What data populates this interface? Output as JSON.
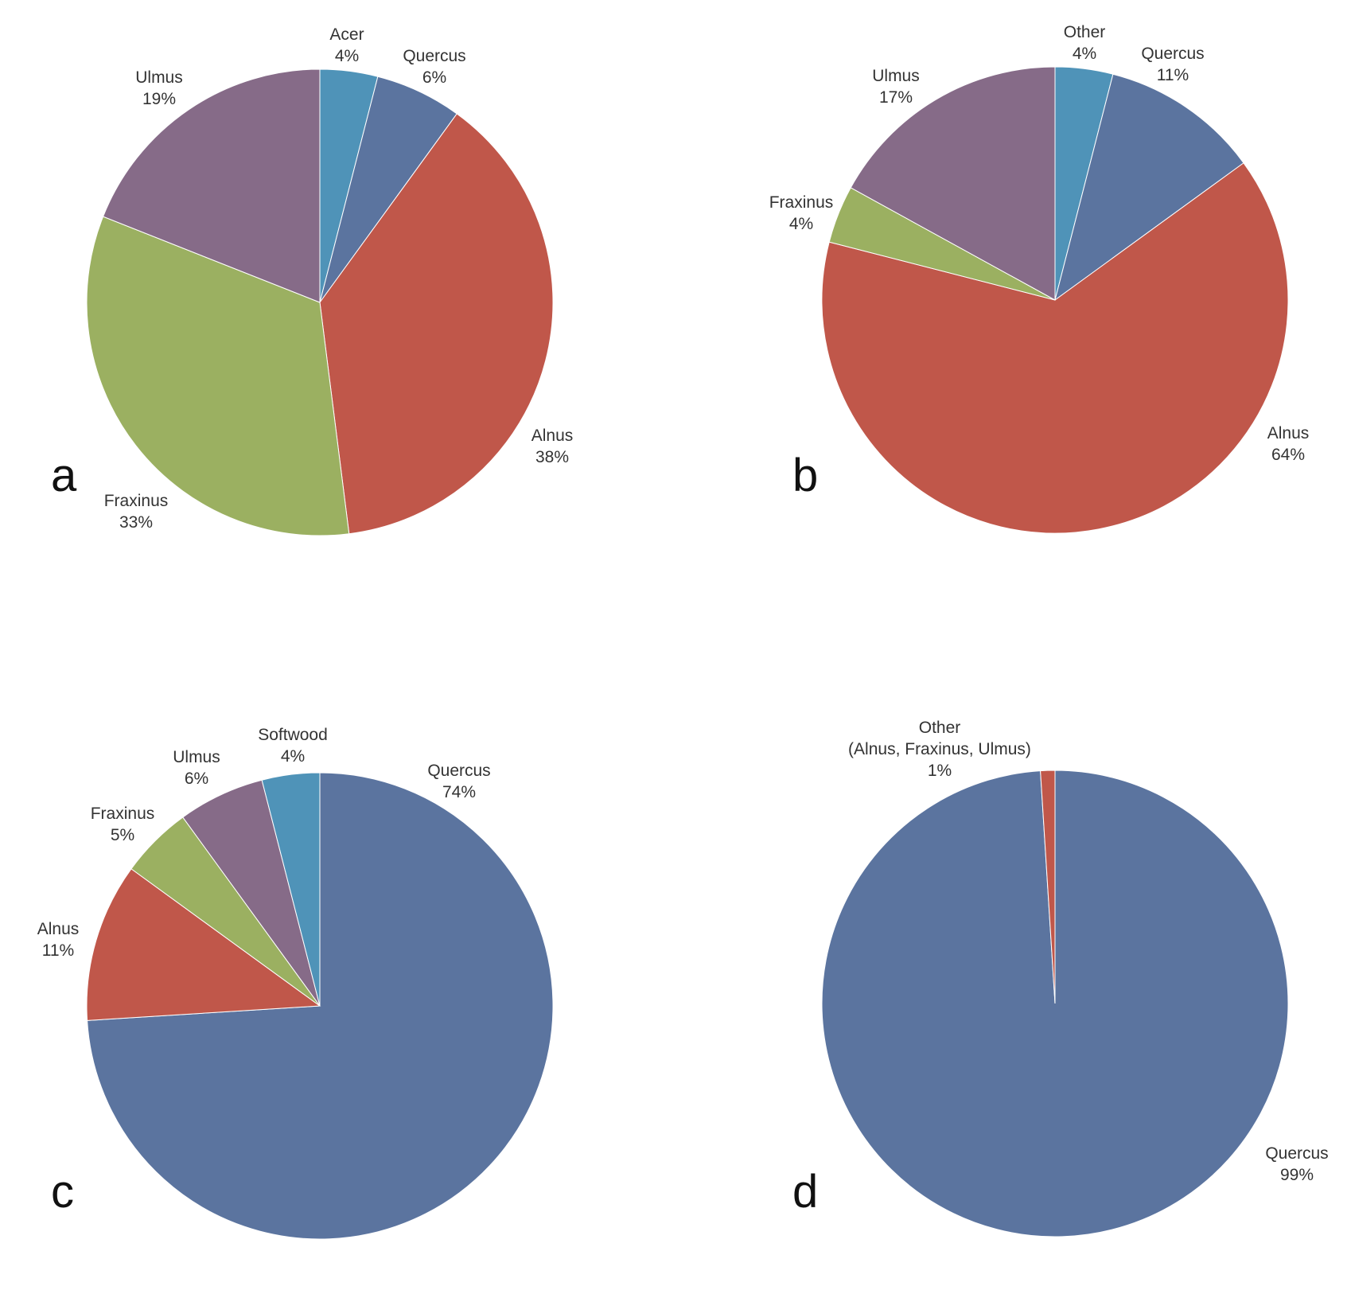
{
  "chart_data": [
    {
      "type": "pie",
      "panel_label": "a",
      "slices": [
        {
          "label": "Acer",
          "value": 4,
          "value_label": "4%",
          "color": "#4f93b8"
        },
        {
          "label": "Quercus",
          "value": 6,
          "value_label": "6%",
          "color": "#5b749f"
        },
        {
          "label": "Alnus",
          "value": 38,
          "value_label": "38%",
          "color": "#c0574a"
        },
        {
          "label": "Fraxinus",
          "value": 33,
          "value_label": "33%",
          "color": "#9bb061"
        },
        {
          "label": "Ulmus",
          "value": 19,
          "value_label": "19%",
          "color": "#866b88"
        }
      ]
    },
    {
      "type": "pie",
      "panel_label": "b",
      "slices": [
        {
          "label": "Other",
          "value": 4,
          "value_label": "4%",
          "color": "#4f93b8"
        },
        {
          "label": "Quercus",
          "value": 11,
          "value_label": "11%",
          "color": "#5b749f"
        },
        {
          "label": "Alnus",
          "value": 64,
          "value_label": "64%",
          "color": "#c0574a"
        },
        {
          "label": "Fraxinus",
          "value": 4,
          "value_label": "4%",
          "color": "#9bb061"
        },
        {
          "label": "Ulmus",
          "value": 17,
          "value_label": "17%",
          "color": "#866b88"
        }
      ]
    },
    {
      "type": "pie",
      "panel_label": "c",
      "slices": [
        {
          "label": "Quercus",
          "value": 74,
          "value_label": "74%",
          "color": "#5b749f"
        },
        {
          "label": "Alnus",
          "value": 11,
          "value_label": "11%",
          "color": "#c0574a"
        },
        {
          "label": "Fraxinus",
          "value": 5,
          "value_label": "5%",
          "color": "#9bb061"
        },
        {
          "label": "Ulmus",
          "value": 6,
          "value_label": "6%",
          "color": "#866b88"
        },
        {
          "label": "Softwood",
          "value": 4,
          "value_label": "4%",
          "color": "#4f93b8"
        }
      ]
    },
    {
      "type": "pie",
      "panel_label": "d",
      "slices": [
        {
          "label": "Quercus",
          "value": 99,
          "value_label": "99%",
          "color": "#5b749f"
        },
        {
          "label": "Other",
          "sublabel": "(Alnus, Fraxinus, Ulmus)",
          "value": 1,
          "value_label": "1%",
          "color": "#c0574a"
        }
      ]
    }
  ]
}
